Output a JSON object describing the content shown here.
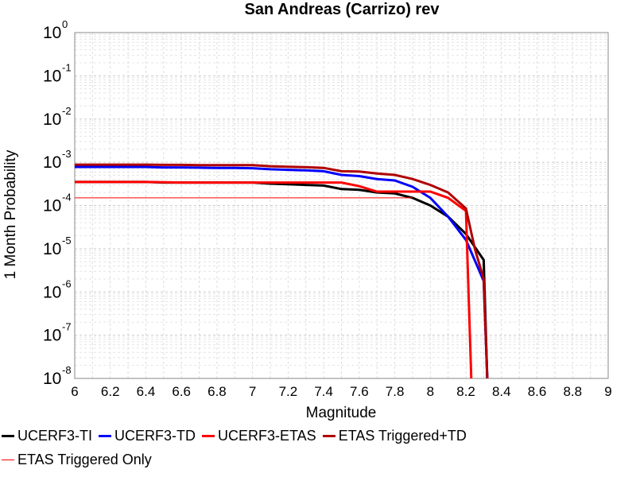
{
  "chart_data": {
    "type": "line",
    "title": "San Andreas (Carrizo) rev",
    "xlabel": "Magnitude",
    "ylabel": "1 Month Probability",
    "xlim": [
      6,
      9
    ],
    "ylim": [
      1e-08,
      1
    ],
    "yscale": "log",
    "x_ticks": [
      "6",
      "6.2",
      "6.4",
      "6.6",
      "6.8",
      "7",
      "7.2",
      "7.4",
      "7.6",
      "7.8",
      "8",
      "8.2",
      "8.4",
      "8.6",
      "8.8",
      "9"
    ],
    "y_ticks": [
      {
        "base": "10",
        "exp": "0",
        "value": 1
      },
      {
        "base": "10",
        "exp": "-1",
        "value": 0.1
      },
      {
        "base": "10",
        "exp": "-2",
        "value": 0.01
      },
      {
        "base": "10",
        "exp": "-3",
        "value": 0.001
      },
      {
        "base": "10",
        "exp": "-4",
        "value": 0.0001
      },
      {
        "base": "10",
        "exp": "-5",
        "value": 1e-05
      },
      {
        "base": "10",
        "exp": "-6",
        "value": 1e-06
      },
      {
        "base": "10",
        "exp": "-7",
        "value": 1e-07
      },
      {
        "base": "10",
        "exp": "-8",
        "value": 1e-08
      }
    ],
    "grid": true,
    "legend_position": "bottom",
    "series": [
      {
        "name": "UCERF3-TI",
        "color": "#000000",
        "width": 3,
        "x": [
          6.0,
          6.1,
          6.2,
          6.3,
          6.4,
          6.5,
          6.6,
          6.7,
          6.8,
          6.9,
          7.0,
          7.1,
          7.2,
          7.3,
          7.4,
          7.5,
          7.6,
          7.7,
          7.8,
          7.9,
          8.0,
          8.1,
          8.2,
          8.3,
          8.32
        ],
        "y": [
          0.00035,
          0.00035,
          0.00035,
          0.00035,
          0.00035,
          0.00034,
          0.00034,
          0.00034,
          0.00034,
          0.00034,
          0.00034,
          0.00032,
          0.00031,
          0.0003,
          0.00029,
          0.00024,
          0.00023,
          0.0002,
          0.00019,
          0.00015,
          0.0001,
          5.5e-05,
          2.2e-05,
          5.5e-06,
          1e-08
        ]
      },
      {
        "name": "UCERF3-TD",
        "color": "#0000ff",
        "width": 3,
        "x": [
          6.0,
          6.1,
          6.2,
          6.3,
          6.4,
          6.5,
          6.6,
          6.7,
          6.8,
          6.9,
          7.0,
          7.1,
          7.2,
          7.3,
          7.4,
          7.5,
          7.6,
          7.7,
          7.8,
          7.9,
          8.0,
          8.1,
          8.2,
          8.3,
          8.32
        ],
        "y": [
          0.00078,
          0.00078,
          0.00078,
          0.00078,
          0.00078,
          0.00076,
          0.00076,
          0.00075,
          0.00074,
          0.00074,
          0.00073,
          0.00069,
          0.00067,
          0.00065,
          0.00062,
          0.00051,
          0.00048,
          0.00041,
          0.00038,
          0.00027,
          0.00015,
          5.5e-05,
          1.6e-05,
          1.8e-06,
          1e-08
        ]
      },
      {
        "name": "UCERF3-ETAS",
        "color": "#ff0000",
        "width": 3,
        "x": [
          6.0,
          6.2,
          6.4,
          6.6,
          6.8,
          7.0,
          7.2,
          7.4,
          7.5,
          7.6,
          7.7,
          7.8,
          7.9,
          8.0,
          8.1,
          8.2,
          8.23
        ],
        "y": [
          0.00035,
          0.00035,
          0.00035,
          0.00034,
          0.00034,
          0.00034,
          0.00034,
          0.00034,
          0.00034,
          0.00028,
          0.00021,
          0.00021,
          0.00021,
          0.00021,
          0.00015,
          7.5e-05,
          1e-08
        ]
      },
      {
        "name": "ETAS Triggered+TD",
        "color": "#b00000",
        "width": 3,
        "x": [
          6.0,
          6.1,
          6.2,
          6.3,
          6.4,
          6.5,
          6.6,
          6.7,
          6.8,
          6.9,
          7.0,
          7.1,
          7.2,
          7.3,
          7.4,
          7.5,
          7.6,
          7.7,
          7.8,
          7.9,
          8.0,
          8.1,
          8.2,
          8.25,
          8.3,
          8.32
        ],
        "y": [
          0.00088,
          0.00088,
          0.00088,
          0.00088,
          0.00088,
          0.00087,
          0.00087,
          0.00086,
          0.00086,
          0.00086,
          0.00086,
          0.00081,
          0.00079,
          0.00077,
          0.00074,
          0.00062,
          0.00061,
          0.00055,
          0.00051,
          0.00041,
          0.0003,
          0.0002,
          8.5e-05,
          1e-05,
          2e-06,
          1e-08
        ]
      },
      {
        "name": "ETAS Triggered Only",
        "color": "#ff0000",
        "width": 1,
        "x": [
          6.0,
          7.9
        ],
        "y": [
          0.00015,
          0.00015
        ]
      }
    ]
  }
}
